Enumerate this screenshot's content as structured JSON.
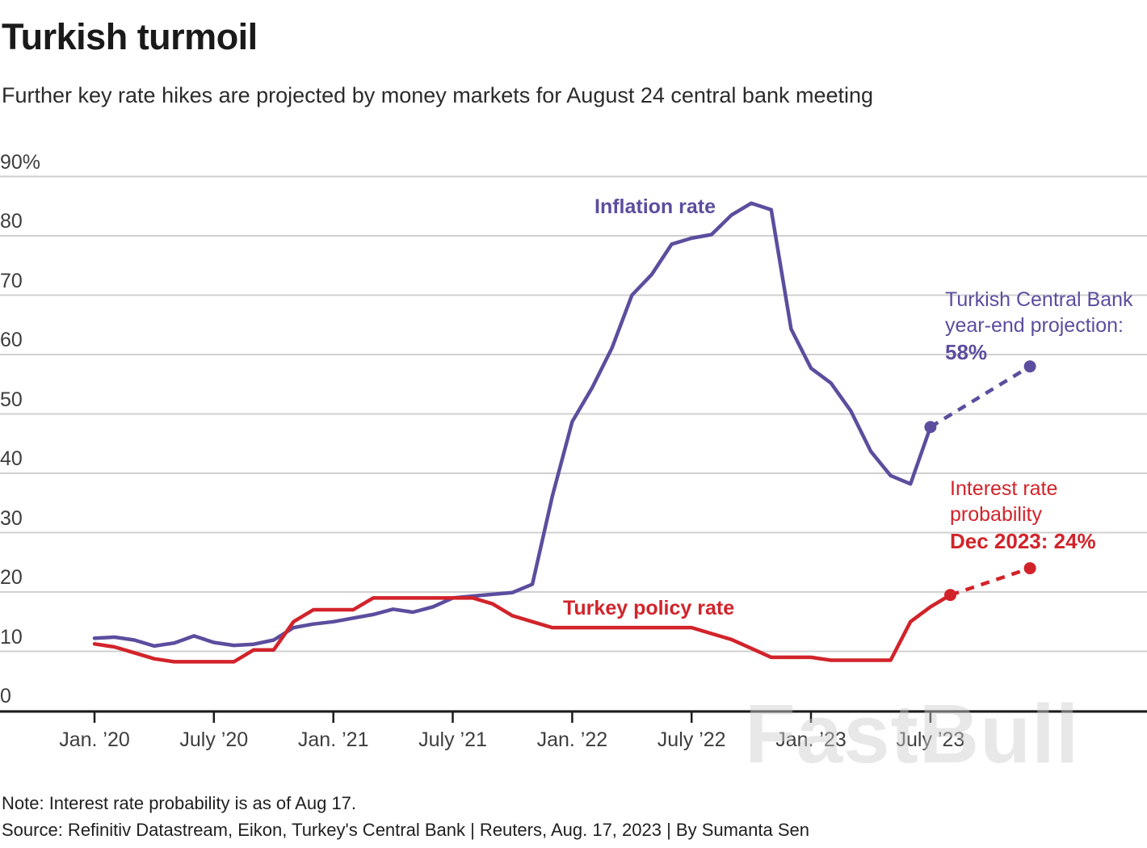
{
  "header": {
    "title": "Turkish turmoil",
    "subtitle": "Further key rate hikes are projected by money markets for August 24 central bank meeting"
  },
  "chart_data": {
    "type": "line",
    "title": "Turkish turmoil",
    "subtitle": "Further key rate hikes are projected by money markets for August 24 central bank meeting",
    "x_start": "Jan 2020",
    "x_unit": "month",
    "ylim": [
      0,
      90
    ],
    "grid": "horizontal",
    "legend_position": "inline-labels",
    "y_axis": [
      {
        "label": "90%",
        "value": 90
      },
      {
        "label": "80",
        "value": 80
      },
      {
        "label": "70",
        "value": 70
      },
      {
        "label": "60",
        "value": 60
      },
      {
        "label": "50",
        "value": 50
      },
      {
        "label": "40",
        "value": 40
      },
      {
        "label": "30",
        "value": 30
      },
      {
        "label": "20",
        "value": 20
      },
      {
        "label": "10",
        "value": 10
      },
      {
        "label": "0",
        "value": 0
      }
    ],
    "x_axis": [
      {
        "label": "Jan. ’20",
        "month": 0
      },
      {
        "label": "July ’20",
        "month": 6
      },
      {
        "label": "Jan. ’21",
        "month": 12
      },
      {
        "label": "July ’21",
        "month": 18
      },
      {
        "label": "Jan. ’22",
        "month": 24
      },
      {
        "label": "July ’22",
        "month": 30
      },
      {
        "label": "Jan. ’23",
        "month": 36
      },
      {
        "label": "July ’23",
        "month": 42
      }
    ],
    "series": [
      {
        "name": "Inflation rate",
        "color": "#5c4d9e",
        "style": "solid",
        "start_month": 0,
        "values": [
          12.2,
          12.4,
          11.9,
          10.9,
          11.4,
          12.6,
          11.5,
          11.0,
          11.2,
          11.9,
          14.0,
          14.6,
          15.0,
          15.6,
          16.2,
          17.1,
          16.6,
          17.5,
          19.0,
          19.3,
          19.6,
          19.9,
          21.3,
          36.1,
          48.7,
          54.4,
          61.1,
          70.0,
          73.5,
          78.6,
          79.6,
          80.2,
          83.5,
          85.5,
          84.4,
          64.3,
          57.7,
          55.2,
          50.5,
          43.7,
          39.6,
          38.2,
          47.8
        ]
      },
      {
        "name": "Turkey policy rate",
        "color": "#d2232a",
        "style": "solid",
        "start_month": 0,
        "values": [
          11.25,
          10.75,
          9.75,
          8.75,
          8.25,
          8.25,
          8.25,
          8.25,
          10.25,
          10.25,
          15.0,
          17.0,
          17.0,
          17.0,
          19.0,
          19.0,
          19.0,
          19.0,
          19.0,
          19.0,
          18.0,
          16.0,
          15.0,
          14.0,
          14.0,
          14.0,
          14.0,
          14.0,
          14.0,
          14.0,
          14.0,
          13.0,
          12.0,
          10.5,
          9.0,
          9.0,
          9.0,
          8.5,
          8.5,
          8.5,
          8.5,
          15.0,
          17.5,
          19.5
        ]
      },
      {
        "name": "Inflation rate year-end projection",
        "color": "#5c4d9e",
        "style": "dashed",
        "points": [
          {
            "month": 42,
            "value": 47.8
          },
          {
            "month": 47,
            "value": 58
          }
        ]
      },
      {
        "name": "Interest rate probability projection",
        "color": "#d2232a",
        "style": "dashed",
        "points": [
          {
            "month": 43,
            "value": 19.5
          },
          {
            "month": 47,
            "value": 24
          }
        ]
      }
    ],
    "markers": [
      {
        "month": 42,
        "value": 47.8,
        "color": "#5c4d9e"
      },
      {
        "month": 47,
        "value": 58,
        "color": "#5c4d9e"
      },
      {
        "month": 43,
        "value": 19.5,
        "color": "#d2232a"
      },
      {
        "month": 47,
        "value": 24,
        "color": "#d2232a"
      }
    ]
  },
  "labels": {
    "inflation_line": "Inflation rate",
    "policy_line": "Turkey policy rate"
  },
  "annotations": {
    "central_bank_projection": {
      "line1": "Turkish Central Bank",
      "line2": "year-end projection:",
      "bold": "58%"
    },
    "rate_probability": {
      "line1": "Interest rate",
      "line2": "probability",
      "bold": "Dec 2023: 24%"
    }
  },
  "footer": {
    "note": "Note: Interest rate probability is as of Aug 17.",
    "source": "Source: Refinitiv Datastream, Eikon, Turkey's Central Bank | Reuters, Aug. 17, 2023 | By Sumanta Sen"
  },
  "watermark": "FastBull",
  "colors": {
    "inflation": "#5c4d9e",
    "policy": "#d2232a",
    "grid": "#d0d0d0",
    "axis": "#1c1c1c"
  }
}
